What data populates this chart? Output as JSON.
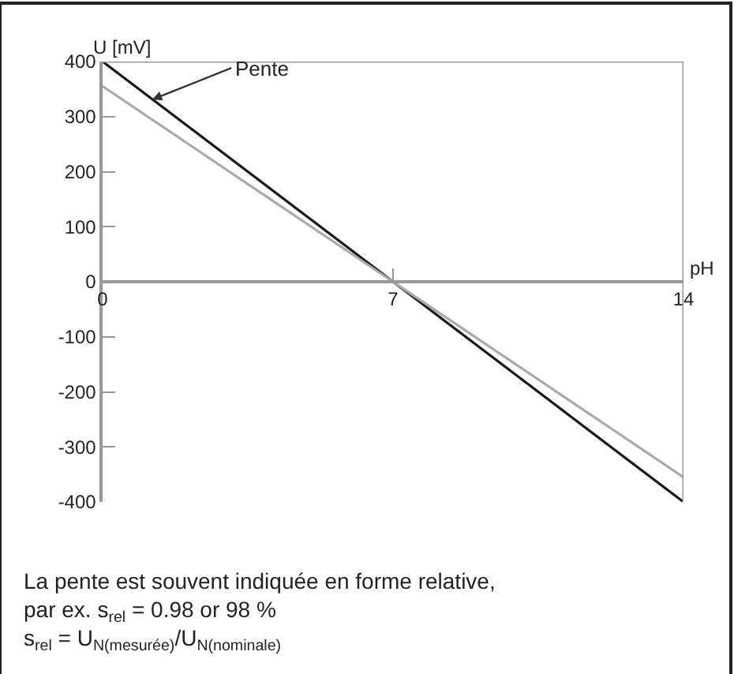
{
  "chart_data": {
    "type": "line",
    "xlabel": "pH",
    "ylabel": "U [mV]",
    "x": [
      0,
      7,
      14
    ],
    "series": [
      {
        "color": "#1a1a1a",
        "values": [
          400,
          0,
          -400
        ]
      },
      {
        "color": "#aaaaaa",
        "values": [
          355,
          0,
          -355
        ]
      }
    ],
    "xlim": [
      0,
      14
    ],
    "xticks": [
      0,
      7,
      14
    ],
    "ylim": [
      -400,
      400
    ],
    "yticks": [
      -400,
      -300,
      -200,
      -100,
      0,
      100,
      200,
      300,
      400
    ],
    "legend": false,
    "marker": "none",
    "line_style": "solid",
    "annotations": [
      {
        "text": "Pente",
        "x": 1.2,
        "y": 331
      },
      "La pente est souvent indiquée en forme relative,",
      "par ex. s$_{rel}$ = 0.98 or 98 %",
      "s$_{rel}$ = U$_{N(mesurée)}$/U$_{N(nominale)}$"
    ]
  }
}
